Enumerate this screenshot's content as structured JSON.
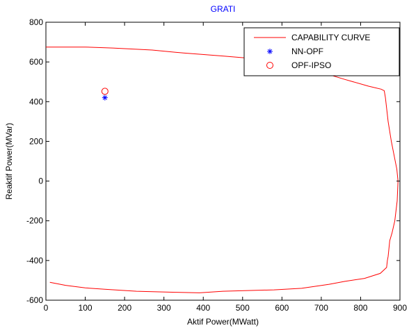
{
  "chart_data": {
    "type": "scatter",
    "title": "GRATI",
    "title_color": "#0000ff",
    "xlabel": "Aktif Power(MWatt)",
    "ylabel": "Reaktif Power(MVar)",
    "xlim": [
      0,
      900
    ],
    "ylim": [
      -600,
      800
    ],
    "xticks": [
      0,
      100,
      200,
      300,
      400,
      500,
      600,
      700,
      800,
      900
    ],
    "yticks": [
      -600,
      -400,
      -200,
      0,
      200,
      400,
      600,
      800
    ],
    "xtick_labels": [
      "0",
      "100",
      "200",
      "300",
      "400",
      "500",
      "600",
      "700",
      "800",
      "900"
    ],
    "ytick_labels": [
      "-600",
      "-400",
      "-200",
      "0",
      "200",
      "400",
      "600",
      "800"
    ],
    "grid": false,
    "legend_position": "top-right",
    "series": [
      {
        "name": "CAPABILITY CURVE",
        "kind": "line",
        "color": "#ff0000",
        "points": [
          [
            0,
            675
          ],
          [
            100,
            675
          ],
          [
            170,
            670
          ],
          [
            270,
            660
          ],
          [
            350,
            645
          ],
          [
            450,
            630
          ],
          [
            540,
            615
          ],
          [
            600,
            600
          ],
          [
            640,
            582
          ],
          [
            700,
            548
          ],
          [
            760,
            512
          ],
          [
            820,
            478
          ],
          [
            852,
            463
          ],
          [
            860,
            455
          ],
          [
            863,
            420
          ],
          [
            870,
            300
          ],
          [
            878,
            200
          ],
          [
            886,
            120
          ],
          [
            892,
            60
          ],
          [
            895,
            0
          ],
          [
            893,
            -100
          ],
          [
            887,
            -200
          ],
          [
            880,
            -260
          ],
          [
            874,
            -300
          ],
          [
            870,
            -380
          ],
          [
            868,
            -400
          ],
          [
            866,
            -435
          ],
          [
            850,
            -465
          ],
          [
            810,
            -490
          ],
          [
            760,
            -505
          ],
          [
            720,
            -520
          ],
          [
            650,
            -540
          ],
          [
            580,
            -548
          ],
          [
            450,
            -555
          ],
          [
            390,
            -563
          ],
          [
            330,
            -560
          ],
          [
            230,
            -555
          ],
          [
            150,
            -545
          ],
          [
            100,
            -538
          ],
          [
            50,
            -525
          ],
          [
            10,
            -510
          ]
        ]
      },
      {
        "name": "NN-OPF",
        "kind": "marker",
        "marker": "asterisk",
        "color": "#0000ff",
        "points": [
          [
            150,
            420
          ]
        ]
      },
      {
        "name": "OPF-IPSO",
        "kind": "marker",
        "marker": "circle",
        "color": "#ff0000",
        "points": [
          [
            150,
            452
          ]
        ]
      }
    ]
  }
}
